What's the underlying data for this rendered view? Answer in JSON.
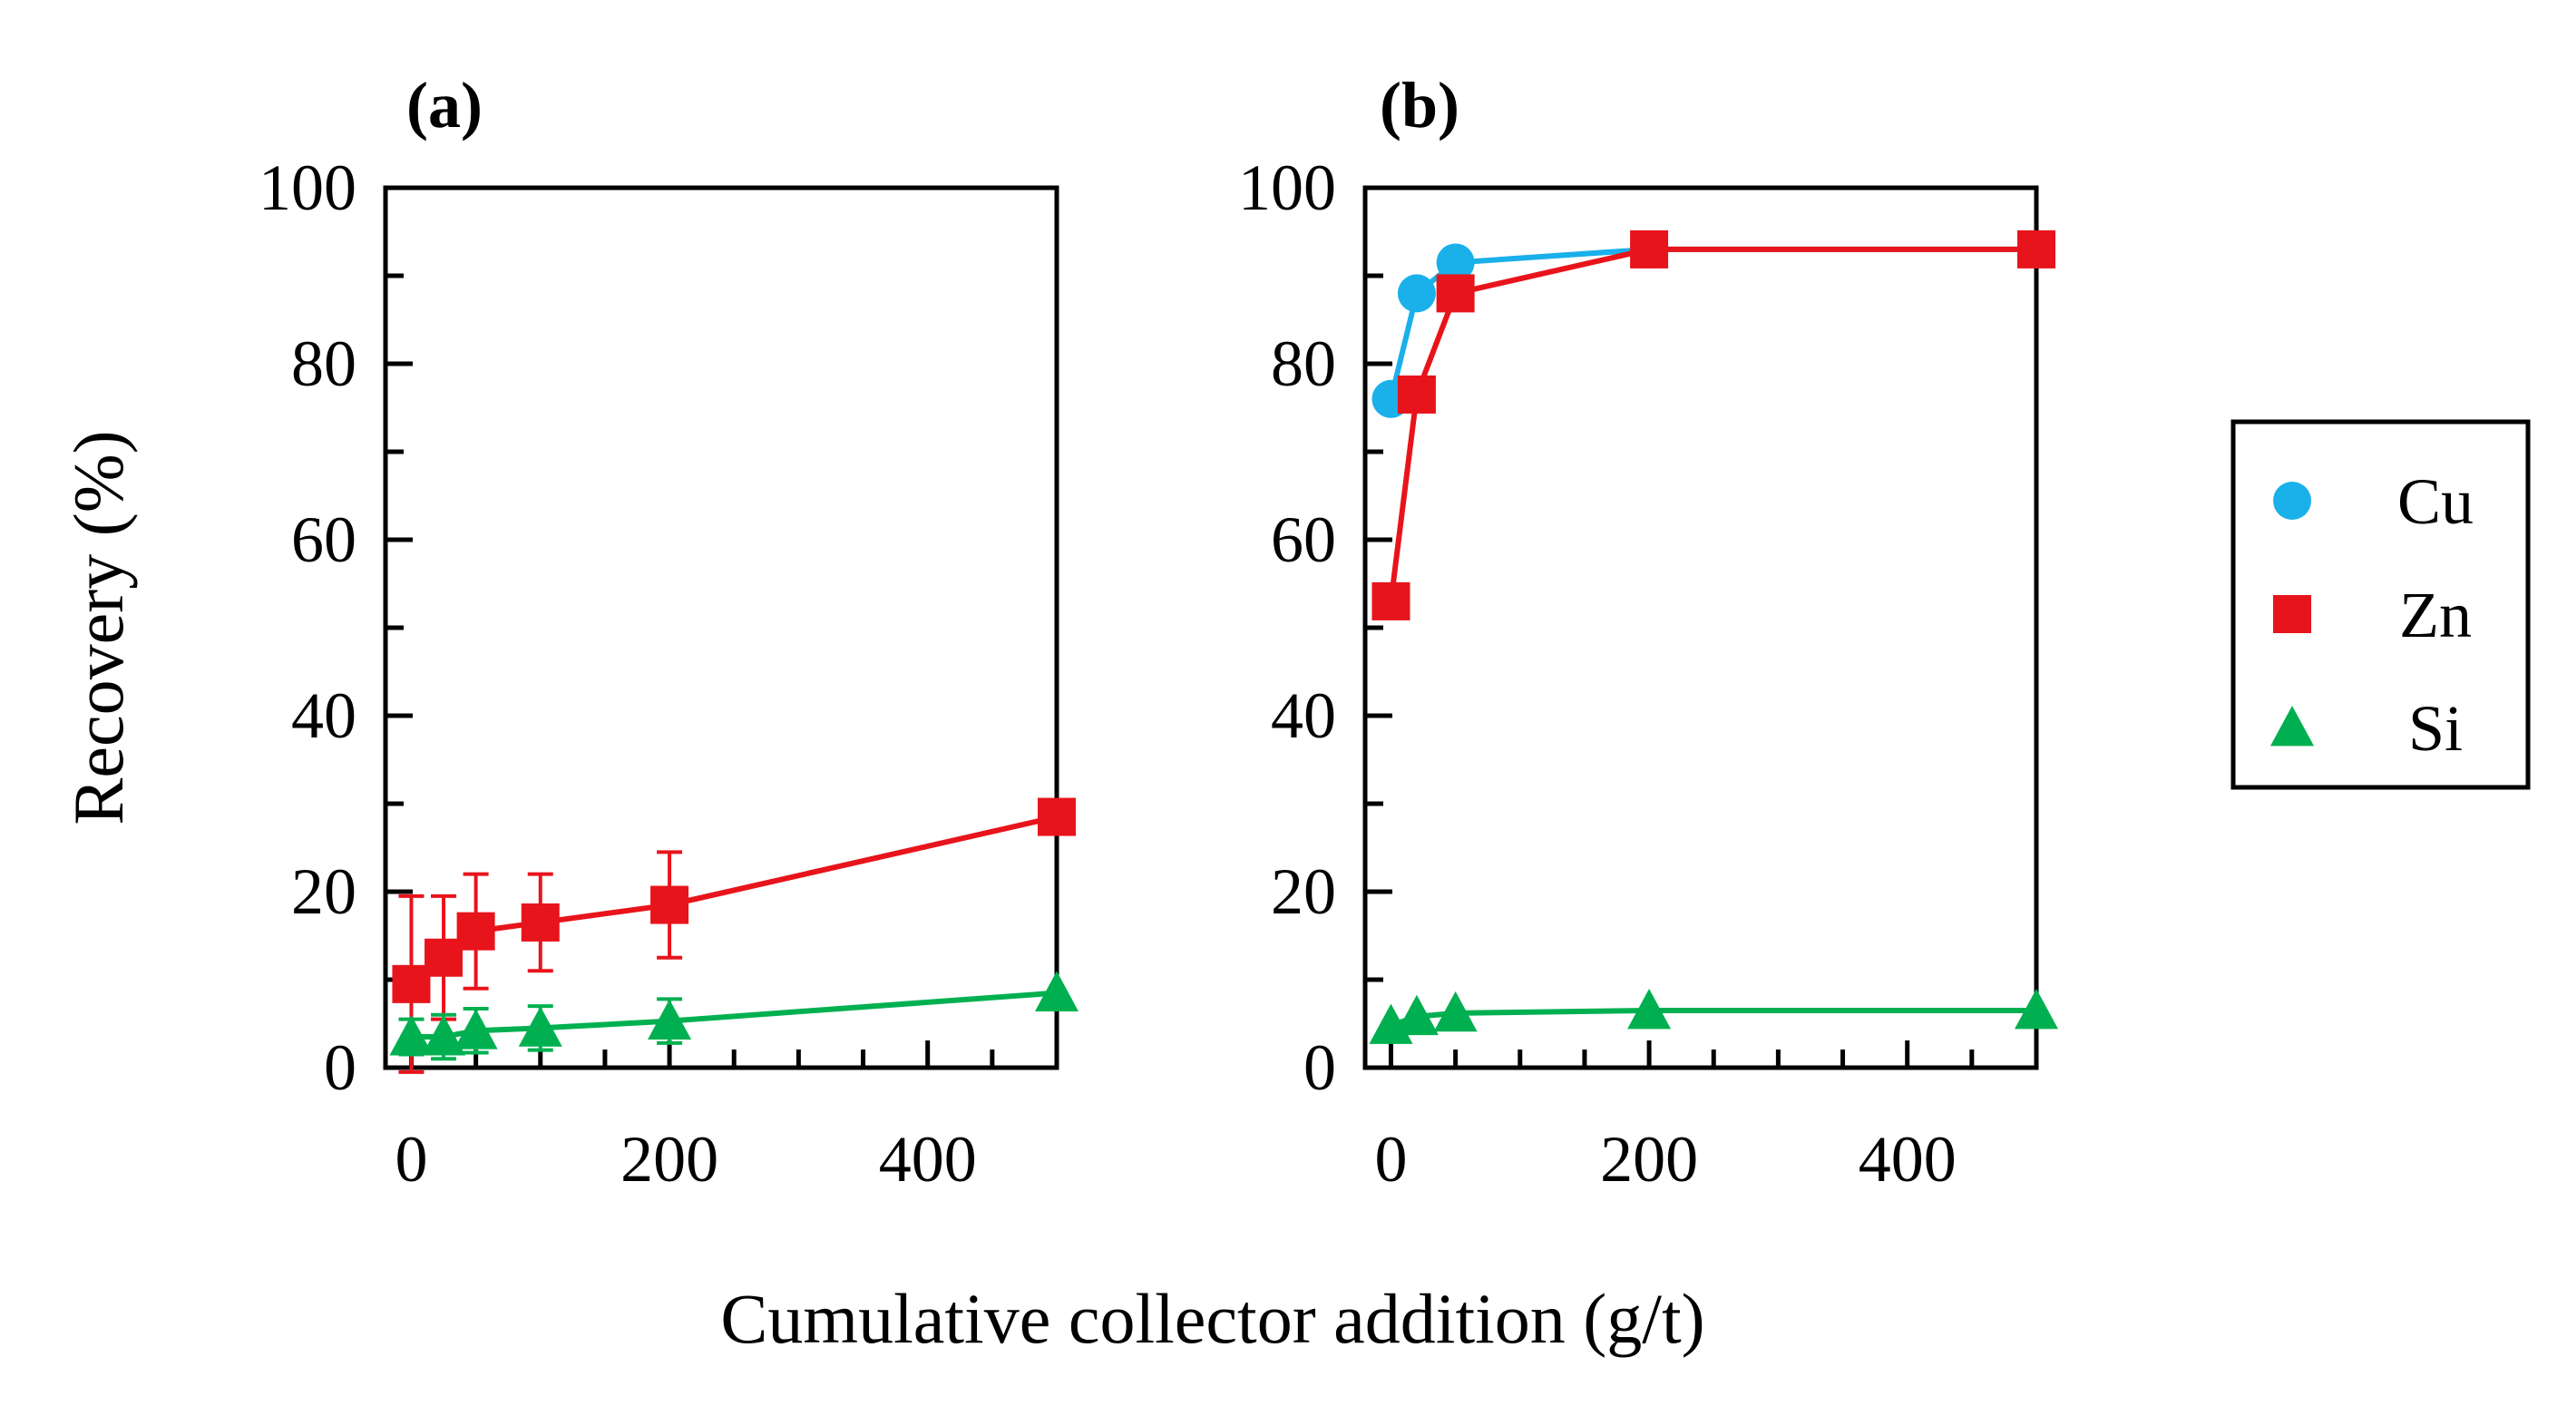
{
  "chart_data": [
    {
      "panel": "(a)",
      "type": "line",
      "xlabel": "Cumulative collector addition (g/t)",
      "ylabel": "Recovery (%)",
      "xlim": [
        -20,
        500
      ],
      "ylim": [
        0,
        100
      ],
      "xticks": [
        0,
        200,
        400
      ],
      "yticks": [
        0,
        20,
        40,
        60,
        80,
        100
      ],
      "tick_labels_x": [
        "0",
        "200",
        "400"
      ],
      "tick_labels_y": [
        "0",
        "20",
        "40",
        "60",
        "80",
        "100"
      ],
      "series": [
        {
          "name": "Zn",
          "color": "#e8141b",
          "marker": "square",
          "x": [
            0,
            25,
            50,
            100,
            200,
            500
          ],
          "y": [
            9.5,
            12.5,
            15.5,
            16.5,
            18.5,
            28.5
          ],
          "err": [
            10,
            7,
            6.5,
            5.5,
            6,
            0
          ]
        },
        {
          "name": "Si",
          "color": "#00b050",
          "marker": "triangle",
          "x": [
            0,
            25,
            50,
            100,
            200,
            500
          ],
          "y": [
            3.5,
            3.5,
            4.2,
            4.5,
            5.3,
            8.5
          ],
          "err": [
            2,
            2.5,
            2.5,
            2.5,
            2.5,
            0
          ]
        }
      ]
    },
    {
      "panel": "(b)",
      "type": "line",
      "xlabel": "Cumulative collector addition (g/t)",
      "ylabel": "Recovery (%)",
      "xlim": [
        -20,
        500
      ],
      "ylim": [
        0,
        100
      ],
      "xticks": [
        0,
        200,
        400
      ],
      "yticks": [
        0,
        20,
        40,
        60,
        80,
        100
      ],
      "tick_labels_x": [
        "0",
        "200",
        "400"
      ],
      "tick_labels_y": [
        "0",
        "20",
        "40",
        "60",
        "80",
        "100"
      ],
      "series": [
        {
          "name": "Cu",
          "color": "#1ab0ea",
          "marker": "circle",
          "x": [
            0,
            20,
            50,
            200,
            500
          ],
          "y": [
            76,
            88,
            91.5,
            93,
            93
          ]
        },
        {
          "name": "Zn",
          "color": "#e8141b",
          "marker": "square",
          "x": [
            0,
            20,
            50,
            200,
            500
          ],
          "y": [
            53,
            76.5,
            88,
            93,
            93
          ]
        },
        {
          "name": "Si",
          "color": "#00b050",
          "marker": "triangle",
          "x": [
            0,
            20,
            50,
            200,
            500
          ],
          "y": [
            4.8,
            5.8,
            6.2,
            6.5,
            6.5
          ]
        }
      ]
    }
  ],
  "legend": {
    "position": "right",
    "items": [
      {
        "label": "Cu",
        "color": "#1ab0ea",
        "marker": "circle"
      },
      {
        "label": "Zn",
        "color": "#e8141b",
        "marker": "square"
      },
      {
        "label": "Si",
        "color": "#00b050",
        "marker": "triangle"
      }
    ]
  }
}
